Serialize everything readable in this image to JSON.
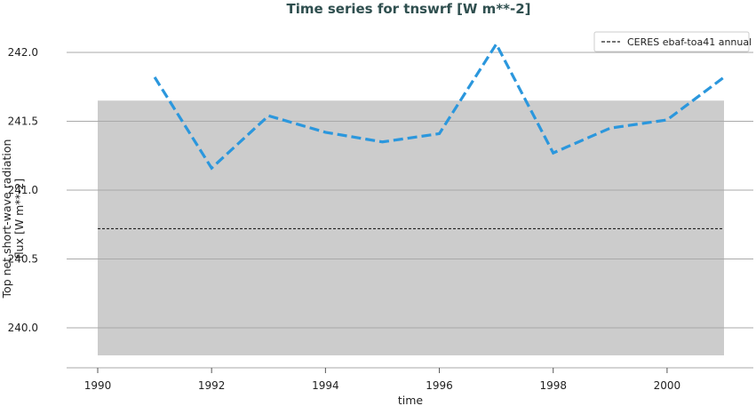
{
  "chart_data": {
    "type": "line",
    "title": "Time series for tnswrf [W m**-2]",
    "xlabel": "time",
    "ylabel_line1": "Top net short-wave radiation",
    "ylabel_line2": "flux [W m**-2]",
    "xlim": [
      1990,
      2001
    ],
    "ylim": [
      239.8,
      242.2
    ],
    "x_ticks": [
      1990,
      1992,
      1994,
      1996,
      1998,
      2000
    ],
    "y_ticks": [
      240.0,
      240.5,
      241.0,
      241.5,
      242.0
    ],
    "y_tick_labels": [
      "240.0",
      "240.5",
      "241.0",
      "241.5",
      "242.0"
    ],
    "grid": "horizontal",
    "legend_position": "top-right",
    "series": [
      {
        "values_x": [
          1991,
          1992,
          1993,
          1994,
          1995,
          1996,
          1997,
          1998,
          1999,
          2000,
          2001
        ],
        "values_y": [
          241.82,
          241.16,
          241.54,
          241.42,
          241.35,
          241.41,
          242.06,
          241.27,
          241.45,
          241.51,
          241.82
        ],
        "color": "#2b97dd",
        "style": "dashed"
      }
    ],
    "reference": {
      "name": "CERES ebaf-toa41 annual",
      "value": 240.72,
      "band": [
        239.8,
        241.65
      ],
      "band_color": "#cccccc",
      "line_color": "#222222",
      "style": "dashed"
    }
  }
}
